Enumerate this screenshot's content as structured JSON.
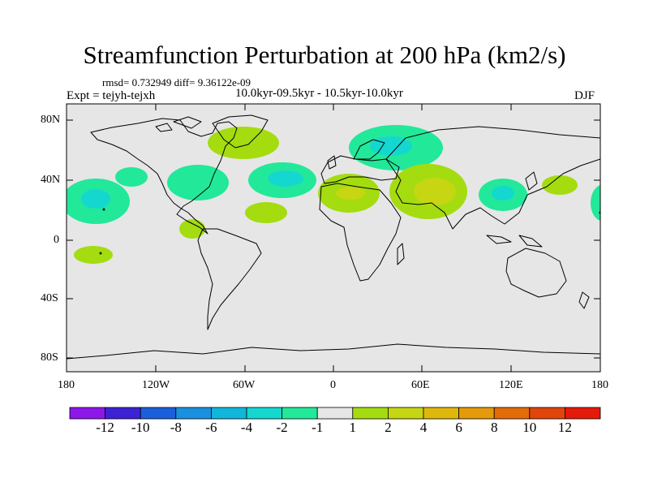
{
  "title": "Streamfunction Perturbation at 200 hPa (km2/s)",
  "stats": "rmsd= 0.732949 diff= 9.36122e-09",
  "experiment": "Expt = tejyh-tejxh",
  "period": "10.0kyr-09.5kyr - 10.5kyr-10.0kyr",
  "season": "DJF",
  "lat_labels": [
    "80N",
    "40N",
    "0",
    "40S",
    "80S"
  ],
  "lon_labels": [
    "180",
    "120W",
    "60W",
    "0",
    "60E",
    "120E",
    "180"
  ],
  "colorbar": {
    "colors": [
      "#8c17e8",
      "#3d22d4",
      "#1a5fdb",
      "#1a90e0",
      "#10b7da",
      "#14d8cf",
      "#22e89a",
      "#e6e6e6",
      "#a4dc10",
      "#c6d612",
      "#dfb80c",
      "#e49a0a",
      "#e26c08",
      "#e0450b",
      "#e41a0a"
    ],
    "labels": [
      "-12",
      "-10",
      "-8",
      "-6",
      "-4",
      "-2",
      "-1",
      "1",
      "2",
      "4",
      "6",
      "8",
      "10",
      "12"
    ]
  },
  "colors": {
    "ocean_background": "#e6e6e6",
    "coast": "#000000"
  }
}
